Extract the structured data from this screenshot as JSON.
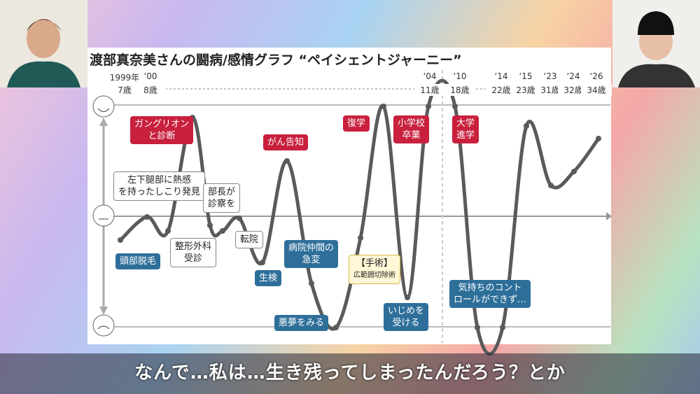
{
  "header": {
    "title": "渡部真奈美さんの闘病/感情グラフ “ペイシェントジャーニー”"
  },
  "timeline": [
    {
      "year": "1999年",
      "age": "7歳"
    },
    {
      "year": "‘00",
      "age": "8歳"
    },
    {
      "year": "‘04",
      "age": "11歳"
    },
    {
      "year": "‘10",
      "age": "18歳"
    },
    {
      "year": "‘14",
      "age": "22歳"
    },
    {
      "year": "‘15",
      "age": "23歳"
    },
    {
      "year": "‘23",
      "age": "31歳"
    },
    {
      "year": "‘24",
      "age": "32歳"
    },
    {
      "year": "‘26",
      "age": "34歳"
    }
  ],
  "events": [
    [
      "ガングリオン",
      "と診断"
    ],
    [
      "左下腿部に熱感",
      "を持ったしこり発見"
    ],
    [
      "頭部脱毛"
    ],
    [
      "整形外科",
      "受診"
    ],
    [
      "部長が",
      "診察を"
    ],
    [
      "転院"
    ],
    [
      "がん告知"
    ],
    [
      "生検"
    ],
    [
      "病院仲間の",
      "急変"
    ],
    [
      "悪夢をみる"
    ],
    [
      "【手術】",
      "広範囲切除術"
    ],
    [
      "復学"
    ],
    [
      "いじめを",
      "受ける"
    ],
    [
      "小学校",
      "卒業"
    ],
    [
      "大学",
      "進学"
    ],
    [
      "気持ちのコント",
      "ロールができず…"
    ]
  ],
  "subtitle": "なんで…私は…生き残ってしまったんだろう？とか"
}
